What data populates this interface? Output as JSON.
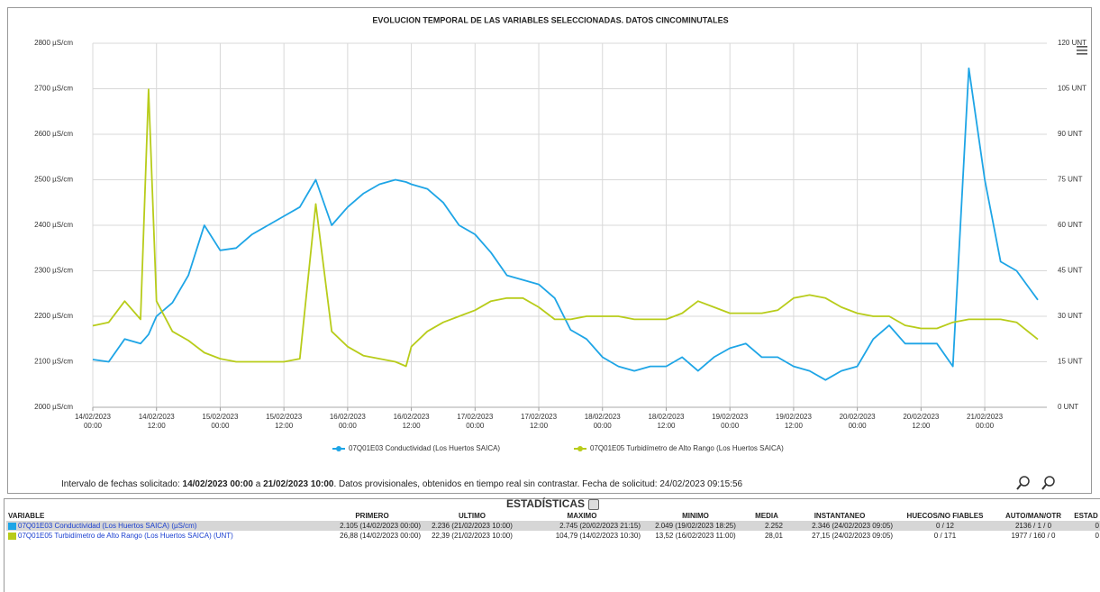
{
  "chart_data": {
    "type": "line",
    "title": "EVOLUCION TEMPORAL DE LAS VARIABLES SELECCIONADAS. DATOS CINCOMINUTALES",
    "x": [
      "14/02/2023 00:00",
      "14/02/2023 03:00",
      "14/02/2023 06:00",
      "14/02/2023 09:00",
      "14/02/2023 10:30",
      "14/02/2023 12:00",
      "14/02/2023 15:00",
      "14/02/2023 18:00",
      "14/02/2023 21:00",
      "15/02/2023 00:00",
      "15/02/2023 03:00",
      "15/02/2023 06:00",
      "15/02/2023 09:00",
      "15/02/2023 12:00",
      "15/02/2023 15:00",
      "15/02/2023 18:00",
      "15/02/2023 21:00",
      "16/02/2023 00:00",
      "16/02/2023 03:00",
      "16/02/2023 06:00",
      "16/02/2023 09:00",
      "16/02/2023 11:00",
      "16/02/2023 12:00",
      "16/02/2023 15:00",
      "16/02/2023 18:00",
      "16/02/2023 21:00",
      "17/02/2023 00:00",
      "17/02/2023 03:00",
      "17/02/2023 06:00",
      "17/02/2023 09:00",
      "17/02/2023 12:00",
      "17/02/2023 15:00",
      "17/02/2023 18:00",
      "17/02/2023 21:00",
      "18/02/2023 00:00",
      "18/02/2023 03:00",
      "18/02/2023 06:00",
      "18/02/2023 09:00",
      "18/02/2023 12:00",
      "18/02/2023 15:00",
      "18/02/2023 18:00",
      "18/02/2023 21:00",
      "19/02/2023 00:00",
      "19/02/2023 03:00",
      "19/02/2023 06:00",
      "19/02/2023 09:00",
      "19/02/2023 12:00",
      "19/02/2023 15:00",
      "19/02/2023 18:00",
      "19/02/2023 21:00",
      "20/02/2023 00:00",
      "20/02/2023 03:00",
      "20/02/2023 06:00",
      "20/02/2023 09:00",
      "20/02/2023 12:00",
      "20/02/2023 15:00",
      "20/02/2023 18:00",
      "20/02/2023 21:00",
      "21/02/2023 00:00",
      "21/02/2023 03:00",
      "21/02/2023 06:00",
      "21/02/2023 10:00"
    ],
    "series": [
      {
        "name": "07Q01E03 Conductividad (Los Huertos SAICA)",
        "color": "#1ea5e6",
        "axis": "y",
        "values": [
          2105,
          2100,
          2150,
          2140,
          2160,
          2200,
          2230,
          2290,
          2400,
          2345,
          2350,
          2380,
          2400,
          2420,
          2440,
          2500,
          2400,
          2440,
          2470,
          2490,
          2500,
          2495,
          2490,
          2480,
          2450,
          2400,
          2380,
          2340,
          2290,
          2280,
          2270,
          2240,
          2170,
          2150,
          2110,
          2090,
          2080,
          2090,
          2090,
          2110,
          2080,
          2110,
          2130,
          2140,
          2110,
          2110,
          2090,
          2080,
          2060,
          2080,
          2090,
          2150,
          2180,
          2140,
          2140,
          2140,
          2090,
          2745,
          2500,
          2320,
          2300,
          2236
        ]
      },
      {
        "name": "07Q01E05 Turbidímetro de Alto Rango (Los Huertos SAICA)",
        "color": "#b8cc1a",
        "axis": "y2",
        "values": [
          26.88,
          28,
          35,
          29,
          104.79,
          35,
          25,
          22,
          18,
          16,
          15,
          15,
          15,
          15,
          16,
          67,
          25,
          20,
          17,
          16,
          15,
          13.52,
          20,
          25,
          28,
          30,
          32,
          35,
          36,
          36,
          33,
          29,
          29,
          30,
          30,
          30,
          29,
          29,
          29,
          31,
          35,
          33,
          31,
          31,
          31,
          32,
          36,
          37,
          36,
          33,
          31,
          30,
          30,
          27,
          26,
          26,
          28,
          29,
          29,
          29,
          28,
          22.39
        ]
      }
    ],
    "xlim": [
      "14/02/2023 00:00",
      "21/02/2023 10:00"
    ],
    "xticks": [
      {
        "value": "14/02/2023 00:00",
        "label": "14/02/2023\n00:00"
      },
      {
        "value": "14/02/2023 12:00",
        "label": "14/02/2023\n12:00"
      },
      {
        "value": "15/02/2023 00:00",
        "label": "15/02/2023\n00:00"
      },
      {
        "value": "15/02/2023 12:00",
        "label": "15/02/2023\n12:00"
      },
      {
        "value": "16/02/2023 00:00",
        "label": "16/02/2023\n00:00"
      },
      {
        "value": "16/02/2023 12:00",
        "label": "16/02/2023\n12:00"
      },
      {
        "value": "17/02/2023 00:00",
        "label": "17/02/2023\n00:00"
      },
      {
        "value": "17/02/2023 12:00",
        "label": "17/02/2023\n12:00"
      },
      {
        "value": "18/02/2023 00:00",
        "label": "18/02/2023\n00:00"
      },
      {
        "value": "18/02/2023 12:00",
        "label": "18/02/2023\n12:00"
      },
      {
        "value": "19/02/2023 00:00",
        "label": "19/02/2023\n00:00"
      },
      {
        "value": "19/02/2023 12:00",
        "label": "19/02/2023\n12:00"
      },
      {
        "value": "20/02/2023 00:00",
        "label": "20/02/2023\n00:00"
      },
      {
        "value": "20/02/2023 12:00",
        "label": "20/02/2023\n12:00"
      },
      {
        "value": "21/02/2023 00:00",
        "label": "21/02/2023\n00:00"
      }
    ],
    "ylim": [
      2000,
      2800
    ],
    "yticks": [
      {
        "value": 2000,
        "label": "2000 µS/cm"
      },
      {
        "value": 2100,
        "label": "2100 µS/cm"
      },
      {
        "value": 2200,
        "label": "2200 µS/cm"
      },
      {
        "value": 2300,
        "label": "2300 µS/cm"
      },
      {
        "value": 2400,
        "label": "2400 µS/cm"
      },
      {
        "value": 2500,
        "label": "2500 µS/cm"
      },
      {
        "value": 2600,
        "label": "2600 µS/cm"
      },
      {
        "value": 2700,
        "label": "2700 µS/cm"
      },
      {
        "value": 2800,
        "label": "2800 µS/cm"
      }
    ],
    "y2lim": [
      0,
      120
    ],
    "y2ticks": [
      {
        "value": 0,
        "label": "0 UNT"
      },
      {
        "value": 15,
        "label": "15 UNT"
      },
      {
        "value": 30,
        "label": "30 UNT"
      },
      {
        "value": 45,
        "label": "45 UNT"
      },
      {
        "value": 60,
        "label": "60 UNT"
      },
      {
        "value": 75,
        "label": "75 UNT"
      },
      {
        "value": 90,
        "label": "90 UNT"
      },
      {
        "value": 105,
        "label": "105 UNT"
      },
      {
        "value": 120,
        "label": "120 UNT"
      }
    ],
    "grid": true,
    "legend": "bottom"
  },
  "note": {
    "prefix": "Intervalo de fechas solicitado: ",
    "from": "14/02/2023 00:00",
    "joiner": " a ",
    "to": "21/02/2023 10:00",
    "suffix": ". Datos provisionales, obtenidos en tiempo real sin contrastar. Fecha de solicitud: 24/02/2023 09:15:56"
  },
  "stats": {
    "title": "ESTADÍSTICAS",
    "columns": [
      "VARIABLE",
      "PRIMERO",
      "ULTIMO",
      "MAXIMO",
      "MINIMO",
      "MEDIA",
      "INSTANTANEO",
      "HUECOS/NO FIABLES",
      "AUTO/MAN/OTR",
      "ESTAD"
    ],
    "rows": [
      [
        "07Q01E03 Conductividad (Los Huertos SAICA) (µS/cm)",
        "2.105 (14/02/2023 00:00)",
        "2.236 (21/02/2023 10:00)",
        "2.745 (20/02/2023 21:15)",
        "2.049 (19/02/2023 18:25)",
        "2.252",
        "2.346 (24/02/2023 09:05)",
        "0 / 12",
        "2136 / 1 / 0",
        "0"
      ],
      [
        "07Q01E05 Turbidímetro de Alto Rango (Los Huertos SAICA) (UNT)",
        "26,88 (14/02/2023 00:00)",
        "22,39 (21/02/2023 10:00)",
        "104,79 (14/02/2023 10:30)",
        "13,52 (16/02/2023 11:00)",
        "28,01",
        "27,15 (24/02/2023 09:05)",
        "0 / 171",
        "1977 / 160 / 0",
        "0"
      ]
    ]
  }
}
